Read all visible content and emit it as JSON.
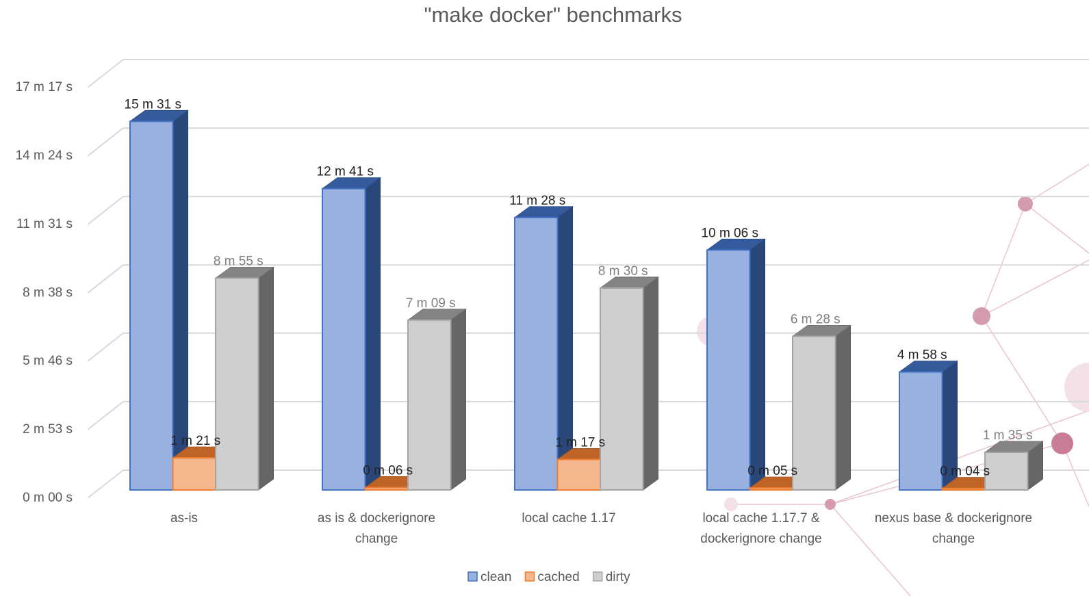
{
  "chart_data": {
    "type": "bar",
    "title": "\"make docker\" benchmarks",
    "categories": [
      "as-is",
      "as is & dockerignore change",
      "local cache 1.17",
      "local cache 1.17.7 & dockerignore change",
      "nexus base & dockerignore change"
    ],
    "series": [
      {
        "name": "clean",
        "color": "#4472c4",
        "values": [
          931,
          761,
          688,
          606,
          298
        ],
        "value_labels": [
          "15 m 31 s",
          "12 m 41 s",
          "11 m 28 s",
          "10 m 06 s",
          "4 m 58 s"
        ]
      },
      {
        "name": "cached",
        "color": "#ed7d31",
        "values": [
          81,
          6,
          77,
          5,
          4
        ],
        "value_labels": [
          "1 m 21 s",
          "0 m 06 s",
          "1 m 17 s",
          "0 m 05 s",
          "0 m 04 s"
        ]
      },
      {
        "name": "dirty",
        "color": "#a5a5a5",
        "values": [
          535,
          429,
          510,
          388,
          95
        ],
        "value_labels": [
          "8 m 55 s",
          "7 m 09 s",
          "8 m 30 s",
          "6 m 28 s",
          "1 m 35 s"
        ]
      }
    ],
    "ylim": [
      0,
      1037
    ],
    "yticks": [
      {
        "value": 0,
        "label": "0 m 00 s"
      },
      {
        "value": 173,
        "label": "2 m 53 s"
      },
      {
        "value": 346,
        "label": "5 m 46 s"
      },
      {
        "value": 518,
        "label": "8 m 38 s"
      },
      {
        "value": 691,
        "label": "11 m 31 s"
      },
      {
        "value": 864,
        "label": "14 m 24 s"
      },
      {
        "value": 1037,
        "label": "17 m 17 s"
      }
    ],
    "grid": true,
    "legend": "bottom"
  }
}
